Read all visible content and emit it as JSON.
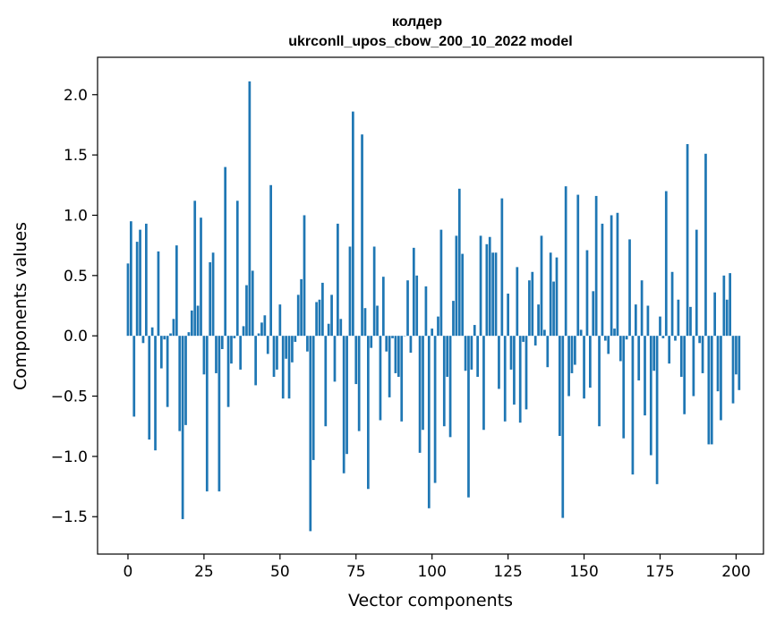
{
  "chart_data": {
    "type": "bar",
    "title_lines": [
      "колдер",
      "ukrconll_upos_cbow_200_10_2022 model"
    ],
    "xlabel": "Vector components",
    "ylabel": "Components values",
    "xlim": [
      -10,
      209
    ],
    "ylim": [
      -1.81,
      2.31
    ],
    "xticks": [
      0,
      25,
      50,
      75,
      100,
      125,
      150,
      175,
      200
    ],
    "yticks": [
      2.0,
      1.5,
      1.0,
      0.5,
      0.0,
      -0.5,
      -1.0,
      -1.5
    ],
    "ytick_labels": [
      "2.0",
      "1.5",
      "1.0",
      "0.5",
      "0.0",
      "−0.5",
      "−1.0",
      "−1.5"
    ],
    "bar_color": "#1f77b4",
    "grid": false,
    "values": [
      0.6,
      0.95,
      -0.67,
      0.78,
      0.88,
      -0.06,
      0.93,
      -0.86,
      0.07,
      -0.95,
      0.7,
      -0.27,
      -0.03,
      -0.59,
      0.02,
      0.14,
      0.75,
      -0.79,
      -1.52,
      -0.74,
      0.03,
      0.21,
      1.12,
      0.25,
      0.98,
      -0.32,
      -1.29,
      0.61,
      0.69,
      -0.31,
      -1.29,
      -0.11,
      1.4,
      -0.59,
      -0.23,
      -0.02,
      1.12,
      -0.28,
      0.08,
      0.42,
      2.11,
      0.54,
      -0.41,
      0.02,
      0.11,
      0.17,
      -0.15,
      1.25,
      -0.34,
      -0.28,
      0.26,
      -0.52,
      -0.19,
      -0.52,
      -0.22,
      -0.05,
      0.34,
      0.47,
      1.0,
      -0.13,
      -1.62,
      -1.03,
      0.28,
      0.3,
      0.44,
      -0.75,
      0.1,
      0.34,
      -0.38,
      0.93,
      0.14,
      -1.14,
      -0.98,
      0.74,
      1.86,
      -0.4,
      -0.79,
      1.67,
      0.23,
      -1.27,
      -0.1,
      0.74,
      0.25,
      -0.7,
      0.49,
      -0.13,
      -0.51,
      -0.02,
      -0.31,
      -0.34,
      -0.71,
      0.0,
      0.46,
      -0.14,
      0.73,
      0.5,
      -0.97,
      -0.78,
      0.41,
      -1.43,
      0.06,
      -1.22,
      0.16,
      0.88,
      -0.75,
      -0.34,
      -0.84,
      0.29,
      0.83,
      1.22,
      0.68,
      -0.29,
      -1.34,
      -0.28,
      0.09,
      -0.34,
      0.83,
      -0.78,
      0.76,
      0.82,
      0.69,
      0.69,
      -0.44,
      1.14,
      -0.71,
      0.35,
      -0.28,
      -0.57,
      0.57,
      -0.72,
      -0.05,
      -0.61,
      0.46,
      0.53,
      -0.08,
      0.26,
      0.83,
      0.05,
      -0.26,
      0.69,
      0.45,
      0.65,
      -0.83,
      -1.51,
      1.24,
      -0.5,
      -0.31,
      -0.24,
      1.17,
      0.05,
      -0.52,
      0.71,
      -0.43,
      0.37,
      1.16,
      -0.75,
      0.93,
      -0.04,
      -0.15,
      1.0,
      0.06,
      1.02,
      -0.21,
      -0.85,
      -0.03,
      0.8,
      -1.15,
      0.26,
      -0.37,
      0.46,
      -0.66,
      0.25,
      -0.99,
      -0.29,
      -1.23,
      0.16,
      -0.02,
      1.2,
      -0.23,
      0.53,
      -0.04,
      0.3,
      -0.34,
      -0.65,
      1.59,
      0.24,
      -0.5,
      0.88,
      -0.06,
      -0.31,
      1.51,
      -0.9,
      -0.9,
      0.36,
      -0.46,
      -0.7,
      0.5,
      0.3,
      0.52,
      -0.56,
      -0.32,
      -0.45
    ]
  }
}
